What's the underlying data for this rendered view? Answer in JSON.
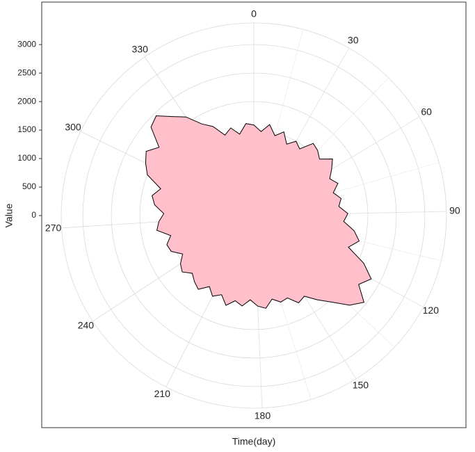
{
  "chart_data": {
    "type": "polar-area",
    "x_label": "Time(day)",
    "y_label": "Value",
    "x": [
      0,
      5,
      10,
      15,
      20,
      25,
      30,
      35,
      40,
      45,
      50,
      55,
      60,
      65,
      70,
      75,
      80,
      85,
      90,
      95,
      100,
      105,
      110,
      115,
      120,
      125,
      130,
      135,
      140,
      145,
      150,
      155,
      160,
      165,
      170,
      175,
      180,
      185,
      190,
      195,
      200,
      205,
      210,
      215,
      220,
      225,
      230,
      235,
      240,
      245,
      250,
      255,
      260,
      265,
      270,
      275,
      280,
      285,
      290,
      295,
      300,
      305,
      310,
      315,
      320,
      325,
      330,
      335,
      340,
      345,
      350,
      355,
      360,
      365
    ],
    "values": [
      1590,
      1480,
      1620,
      1450,
      1560,
      1380,
      1500,
      1420,
      1640,
      1600,
      1520,
      1700,
      1590,
      1480,
      1580,
      1450,
      1560,
      1500,
      1650,
      1580,
      1780,
      1900,
      1750,
      2100,
      2340,
      2200,
      2460,
      2300,
      2040,
      1850,
      1670,
      1720,
      1560,
      1590,
      1500,
      1640,
      1590,
      1480,
      1600,
      1530,
      1650,
      1500,
      1590,
      1470,
      1620,
      1560,
      1480,
      1600,
      1540,
      1420,
      1580,
      1610,
      1500,
      1720,
      1670,
      1580,
      1750,
      1820,
      1700,
      2000,
      2110,
      2200,
      2050,
      2380,
      2450,
      2250,
      2100,
      1850,
      1720,
      1500,
      1590,
      1450,
      1620,
      1590
    ],
    "color": "#ffc0cb",
    "line_color": "#000000",
    "xlim": [
      0,
      365
    ],
    "xticks": [
      0,
      30,
      60,
      90,
      120,
      150,
      180,
      210,
      240,
      270,
      300,
      330
    ],
    "ylim": [
      0,
      3380
    ],
    "yticks": [
      0,
      500,
      1000,
      1500,
      2000,
      2500,
      3000
    ],
    "grid": true
  }
}
